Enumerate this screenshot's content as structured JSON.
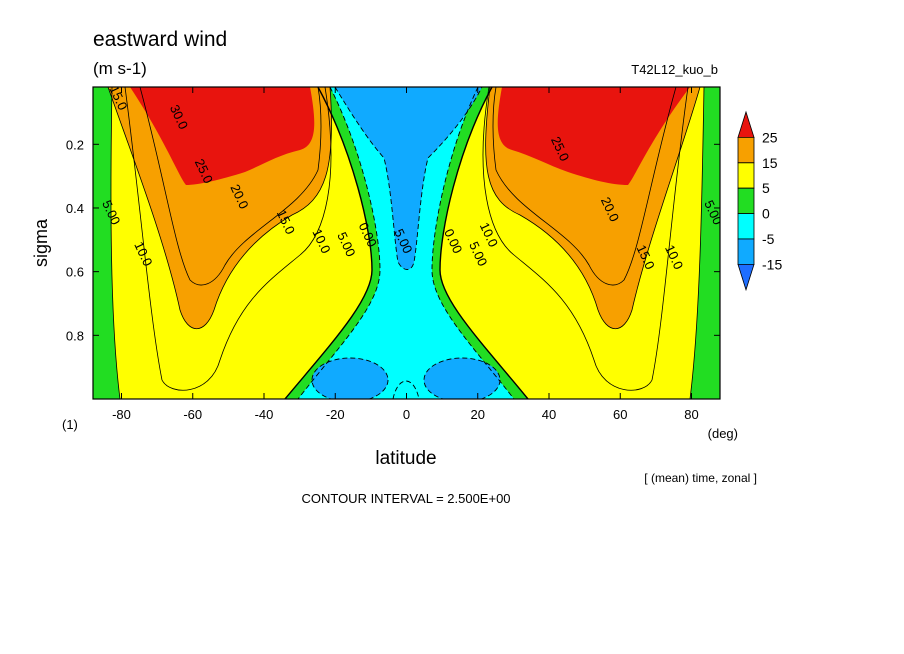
{
  "title": "eastward wind",
  "units": "(m s-1)",
  "run_name": "T42L12_kuo_b",
  "x_unit": "(deg)",
  "y_unit": "(1)",
  "xlabel": "latitude",
  "ylabel": "sigma",
  "averaging_note": "[ (mean) time, zonal ]",
  "contour_interval_note": "CONTOUR INTERVAL = 2.500E+00",
  "chart_data": {
    "type": "heatmap",
    "title": "eastward wind",
    "xlabel": "latitude",
    "ylabel": "sigma",
    "xlim": [
      -88,
      88
    ],
    "ylim": [
      1.0,
      0.02
    ],
    "x_ticks": [
      -80,
      -60,
      -40,
      -20,
      0,
      20,
      40,
      60,
      80
    ],
    "x_tick_labels": [
      "-80",
      "-60",
      "-40",
      "-20",
      "0",
      "20",
      "40",
      "60",
      "80"
    ],
    "y_ticks": [
      0.2,
      0.4,
      0.6,
      0.8
    ],
    "y_tick_labels": [
      "0.2",
      "0.4",
      "0.6",
      "0.8"
    ],
    "contour_interval": 2.5,
    "colorbar": {
      "labels": [
        "25",
        "15",
        "5",
        "0",
        "-5",
        "-15"
      ],
      "bands": [
        {
          "min": 25,
          "max": null,
          "color": "#e8140e"
        },
        {
          "min": 15,
          "max": 25,
          "color": "#f7a000"
        },
        {
          "min": 5,
          "max": 15,
          "color": "#ffff00"
        },
        {
          "min": 0,
          "max": 5,
          "color": "#22dd22"
        },
        {
          "min": -5,
          "max": 0,
          "color": "#00ffff"
        },
        {
          "min": -15,
          "max": -5,
          "color": "#10aaff"
        },
        {
          "min": null,
          "max": -15,
          "color": "#1e6eff"
        }
      ]
    },
    "contour_labels": [
      {
        "text": "15.0",
        "lat": -82,
        "sigma": 0.06
      },
      {
        "text": "30.0",
        "lat": -65,
        "sigma": 0.12
      },
      {
        "text": "25.0",
        "lat": -58,
        "sigma": 0.29
      },
      {
        "text": "20.0",
        "lat": -48,
        "sigma": 0.37
      },
      {
        "text": "15.0",
        "lat": -35,
        "sigma": 0.45
      },
      {
        "text": "10.0",
        "lat": -25,
        "sigma": 0.51
      },
      {
        "text": "5.00",
        "lat": -18,
        "sigma": 0.52
      },
      {
        "text": "0.00",
        "lat": -12,
        "sigma": 0.49
      },
      {
        "text": "5.00",
        "lat": -84,
        "sigma": 0.42
      },
      {
        "text": "10.0",
        "lat": -75,
        "sigma": 0.55
      },
      {
        "text": "5.00",
        "lat": -2,
        "sigma": 0.51
      },
      {
        "text": "0.00",
        "lat": 12,
        "sigma": 0.51
      },
      {
        "text": "10.0",
        "lat": 22,
        "sigma": 0.49
      },
      {
        "text": "5.00",
        "lat": 19,
        "sigma": 0.55
      },
      {
        "text": "25.0",
        "lat": 42,
        "sigma": 0.22
      },
      {
        "text": "20.0",
        "lat": 56,
        "sigma": 0.41
      },
      {
        "text": "15.0",
        "lat": 66,
        "sigma": 0.56
      },
      {
        "text": "10.0",
        "lat": 74,
        "sigma": 0.56
      },
      {
        "text": "5.00",
        "lat": 85,
        "sigma": 0.42
      }
    ],
    "grid": false
  }
}
